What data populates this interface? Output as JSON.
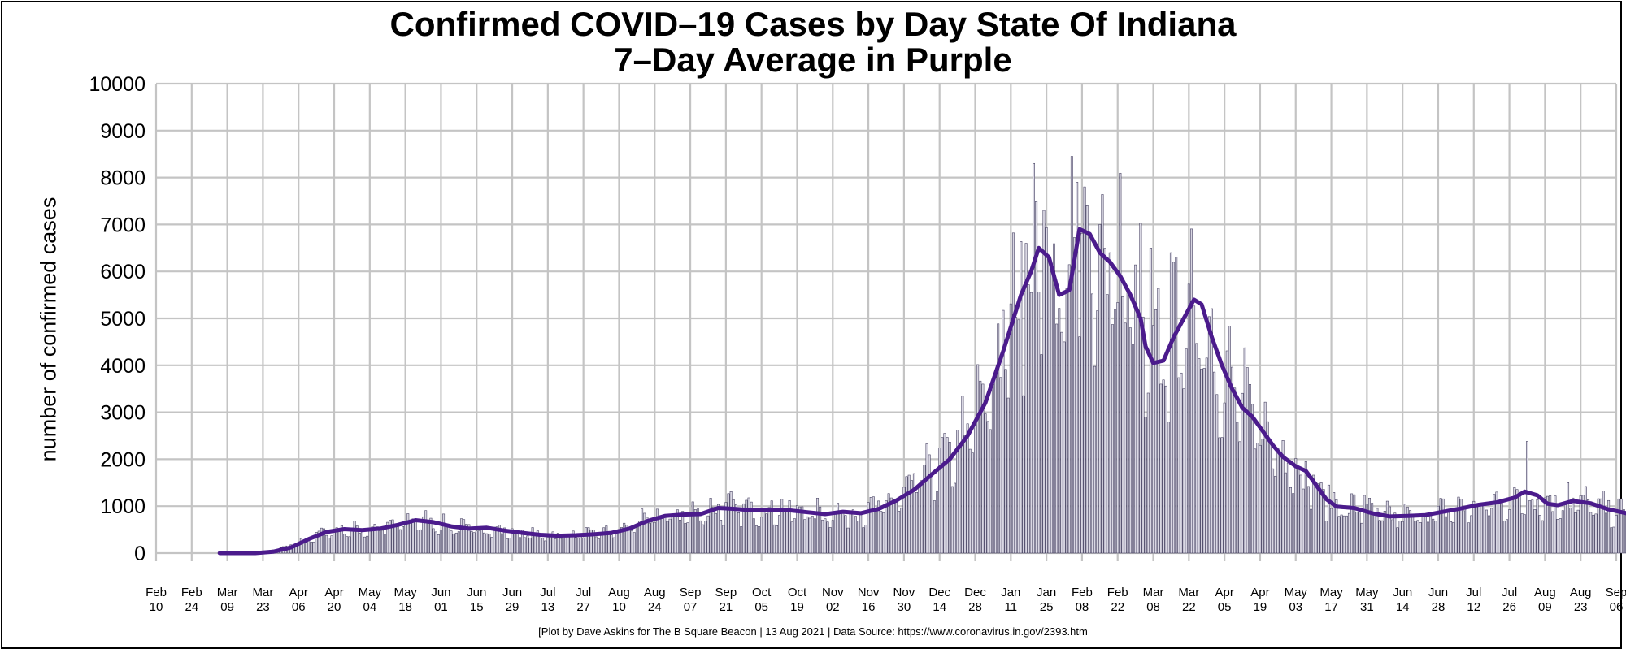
{
  "chart_data": {
    "type": "bar",
    "title": "Confirmed COVID–19 Cases by Day State Of Indiana",
    "subtitle": "7–Day Average in Purple",
    "xlabel": "",
    "ylabel": "number of confirmed cases",
    "ylim": [
      0,
      10000
    ],
    "yticks": [
      "0",
      "1000",
      "2000",
      "3000",
      "4000",
      "5000",
      "6000",
      "7000",
      "8000",
      "9000",
      "10000"
    ],
    "x_start": "2020-02-10",
    "x_end": "2021-09-06",
    "xticks": [
      {
        "month": "Feb",
        "day": "10"
      },
      {
        "month": "Feb",
        "day": "24"
      },
      {
        "month": "Mar",
        "day": "09"
      },
      {
        "month": "Mar",
        "day": "23"
      },
      {
        "month": "Apr",
        "day": "06"
      },
      {
        "month": "Apr",
        "day": "20"
      },
      {
        "month": "May",
        "day": "04"
      },
      {
        "month": "May",
        "day": "18"
      },
      {
        "month": "Jun",
        "day": "01"
      },
      {
        "month": "Jun",
        "day": "15"
      },
      {
        "month": "Jun",
        "day": "29"
      },
      {
        "month": "Jul",
        "day": "13"
      },
      {
        "month": "Jul",
        "day": "27"
      },
      {
        "month": "Aug",
        "day": "10"
      },
      {
        "month": "Aug",
        "day": "24"
      },
      {
        "month": "Sep",
        "day": "07"
      },
      {
        "month": "Sep",
        "day": "21"
      },
      {
        "month": "Oct",
        "day": "05"
      },
      {
        "month": "Oct",
        "day": "19"
      },
      {
        "month": "Nov",
        "day": "02"
      },
      {
        "month": "Nov",
        "day": "16"
      },
      {
        "month": "Nov",
        "day": "30"
      },
      {
        "month": "Dec",
        "day": "14"
      },
      {
        "month": "Dec",
        "day": "28"
      },
      {
        "month": "Jan",
        "day": "11"
      },
      {
        "month": "Jan",
        "day": "25"
      },
      {
        "month": "Feb",
        "day": "08"
      },
      {
        "month": "Feb",
        "day": "22"
      },
      {
        "month": "Mar",
        "day": "08"
      },
      {
        "month": "Mar",
        "day": "22"
      },
      {
        "month": "Apr",
        "day": "05"
      },
      {
        "month": "Apr",
        "day": "19"
      },
      {
        "month": "May",
        "day": "03"
      },
      {
        "month": "May",
        "day": "17"
      },
      {
        "month": "May",
        "day": "31"
      },
      {
        "month": "Jun",
        "day": "14"
      },
      {
        "month": "Jun",
        "day": "28"
      },
      {
        "month": "Jul",
        "day": "12"
      },
      {
        "month": "Jul",
        "day": "26"
      },
      {
        "month": "Aug",
        "day": "09"
      },
      {
        "month": "Aug",
        "day": "23"
      },
      {
        "month": "Sep",
        "day": "06"
      }
    ],
    "series": [
      {
        "name": "Daily confirmed cases",
        "kind": "bar",
        "color": "#9a97ad",
        "start_date": "2020-03-06",
        "anchors": [
          [
            0,
            0
          ],
          [
            14,
            0
          ],
          [
            21,
            60
          ],
          [
            28,
            150
          ],
          [
            35,
            300
          ],
          [
            42,
            470
          ],
          [
            49,
            500
          ],
          [
            56,
            500
          ],
          [
            63,
            540
          ],
          [
            70,
            600
          ],
          [
            77,
            720
          ],
          [
            84,
            640
          ],
          [
            91,
            560
          ],
          [
            98,
            520
          ],
          [
            105,
            530
          ],
          [
            112,
            460
          ],
          [
            119,
            420
          ],
          [
            126,
            390
          ],
          [
            133,
            380
          ],
          [
            140,
            400
          ],
          [
            147,
            410
          ],
          [
            154,
            440
          ],
          [
            161,
            560
          ],
          [
            168,
            720
          ],
          [
            175,
            800
          ],
          [
            182,
            830
          ],
          [
            189,
            870
          ],
          [
            196,
            970
          ],
          [
            203,
            960
          ],
          [
            210,
            920
          ],
          [
            217,
            930
          ],
          [
            224,
            920
          ],
          [
            231,
            880
          ],
          [
            238,
            840
          ],
          [
            245,
            880
          ],
          [
            252,
            870
          ],
          [
            259,
            960
          ],
          [
            266,
            1150
          ],
          [
            273,
            1450
          ],
          [
            280,
            1780
          ],
          [
            287,
            2100
          ],
          [
            294,
            2600
          ],
          [
            301,
            3300
          ],
          [
            308,
            4400
          ],
          [
            315,
            5600
          ],
          [
            322,
            6500
          ],
          [
            329,
            6200
          ],
          [
            336,
            5600
          ],
          [
            343,
            6700
          ],
          [
            350,
            6200
          ],
          [
            357,
            5800
          ],
          [
            364,
            4900
          ],
          [
            368,
            4100
          ],
          [
            375,
            4500
          ],
          [
            382,
            5000
          ],
          [
            386,
            5300
          ],
          [
            392,
            4200
          ],
          [
            399,
            3500
          ],
          [
            406,
            2900
          ],
          [
            413,
            2400
          ],
          [
            420,
            2050
          ],
          [
            427,
            1700
          ],
          [
            434,
            1200
          ],
          [
            441,
            950
          ],
          [
            448,
            950
          ],
          [
            455,
            820
          ],
          [
            462,
            780
          ],
          [
            469,
            800
          ],
          [
            476,
            840
          ],
          [
            483,
            900
          ],
          [
            490,
            960
          ],
          [
            497,
            1020
          ],
          [
            504,
            1060
          ],
          [
            511,
            1180
          ],
          [
            518,
            1150
          ],
          [
            525,
            1060
          ],
          [
            532,
            1120
          ],
          [
            539,
            1040
          ],
          [
            546,
            920
          ],
          [
            553,
            830
          ],
          [
            560,
            760
          ],
          [
            567,
            680
          ],
          [
            574,
            540
          ],
          [
            581,
            440
          ],
          [
            588,
            400
          ],
          [
            595,
            330
          ],
          [
            602,
            260
          ],
          [
            609,
            240
          ],
          [
            616,
            230
          ],
          [
            623,
            240
          ],
          [
            630,
            300
          ],
          [
            637,
            420
          ],
          [
            644,
            540
          ],
          [
            651,
            680
          ],
          [
            658,
            920
          ],
          [
            665,
            1350
          ],
          [
            672,
            1800
          ],
          [
            677,
            2300
          ]
        ],
        "spikes": [
          [
            293,
            2500
          ],
          [
            300,
            3600
          ],
          [
            317,
            6600
          ],
          [
            320,
            8300
          ],
          [
            324,
            7300
          ],
          [
            332,
            4500
          ],
          [
            335,
            8450
          ],
          [
            337,
            7900
          ],
          [
            341,
            7400
          ],
          [
            346,
            7000
          ],
          [
            350,
            6400
          ],
          [
            356,
            4900
          ],
          [
            364,
            2900
          ],
          [
            366,
            6500
          ],
          [
            370,
            3600
          ],
          [
            374,
            6400
          ],
          [
            379,
            3500
          ],
          [
            395,
            3200
          ],
          [
            412,
            2800
          ],
          [
            418,
            2400
          ],
          [
            436,
            1450
          ],
          [
            450,
            1230
          ],
          [
            488,
            1150
          ],
          [
            502,
            1300
          ],
          [
            514,
            2380
          ],
          [
            530,
            1500
          ],
          [
            583,
            1190
          ],
          [
            602,
            580
          ],
          [
            652,
            850
          ],
          [
            672,
            1900
          ],
          [
            679,
            3150
          ]
        ],
        "jitter": 0.22,
        "count": 681
      },
      {
        "name": "7-Day Average",
        "kind": "line",
        "color": "#4b1b8c",
        "start_date": "2020-03-06",
        "points": [
          [
            0,
            0
          ],
          [
            14,
            0
          ],
          [
            21,
            30
          ],
          [
            28,
            120
          ],
          [
            35,
            300
          ],
          [
            42,
            450
          ],
          [
            49,
            510
          ],
          [
            56,
            490
          ],
          [
            63,
            520
          ],
          [
            70,
            600
          ],
          [
            77,
            700
          ],
          [
            84,
            660
          ],
          [
            91,
            570
          ],
          [
            98,
            520
          ],
          [
            105,
            540
          ],
          [
            112,
            480
          ],
          [
            119,
            430
          ],
          [
            126,
            390
          ],
          [
            133,
            370
          ],
          [
            140,
            380
          ],
          [
            147,
            400
          ],
          [
            154,
            430
          ],
          [
            161,
            520
          ],
          [
            168,
            680
          ],
          [
            175,
            790
          ],
          [
            182,
            820
          ],
          [
            189,
            830
          ],
          [
            196,
            960
          ],
          [
            203,
            940
          ],
          [
            210,
            910
          ],
          [
            217,
            920
          ],
          [
            224,
            910
          ],
          [
            231,
            870
          ],
          [
            238,
            830
          ],
          [
            245,
            880
          ],
          [
            252,
            850
          ],
          [
            259,
            940
          ],
          [
            266,
            1120
          ],
          [
            273,
            1350
          ],
          [
            280,
            1680
          ],
          [
            287,
            2000
          ],
          [
            294,
            2500
          ],
          [
            301,
            3200
          ],
          [
            308,
            4300
          ],
          [
            315,
            5500
          ],
          [
            319,
            6000
          ],
          [
            322,
            6500
          ],
          [
            326,
            6300
          ],
          [
            330,
            5500
          ],
          [
            334,
            5600
          ],
          [
            338,
            6900
          ],
          [
            342,
            6800
          ],
          [
            346,
            6400
          ],
          [
            350,
            6200
          ],
          [
            354,
            5900
          ],
          [
            358,
            5500
          ],
          [
            362,
            5000
          ],
          [
            364,
            4400
          ],
          [
            367,
            4050
          ],
          [
            371,
            4100
          ],
          [
            375,
            4600
          ],
          [
            379,
            5000
          ],
          [
            383,
            5400
          ],
          [
            386,
            5300
          ],
          [
            390,
            4600
          ],
          [
            394,
            4000
          ],
          [
            398,
            3500
          ],
          [
            402,
            3100
          ],
          [
            406,
            2900
          ],
          [
            410,
            2600
          ],
          [
            414,
            2300
          ],
          [
            418,
            2050
          ],
          [
            423,
            1850
          ],
          [
            427,
            1750
          ],
          [
            431,
            1450
          ],
          [
            435,
            1150
          ],
          [
            439,
            990
          ],
          [
            446,
            960
          ],
          [
            453,
            850
          ],
          [
            460,
            780
          ],
          [
            467,
            790
          ],
          [
            474,
            810
          ],
          [
            481,
            880
          ],
          [
            488,
            950
          ],
          [
            495,
            1030
          ],
          [
            502,
            1080
          ],
          [
            509,
            1180
          ],
          [
            513,
            1310
          ],
          [
            518,
            1230
          ],
          [
            522,
            1050
          ],
          [
            526,
            1020
          ],
          [
            532,
            1110
          ],
          [
            539,
            1060
          ],
          [
            546,
            930
          ],
          [
            553,
            850
          ],
          [
            560,
            790
          ],
          [
            567,
            680
          ],
          [
            574,
            560
          ],
          [
            581,
            460
          ],
          [
            588,
            410
          ],
          [
            595,
            330
          ],
          [
            602,
            270
          ],
          [
            609,
            250
          ],
          [
            616,
            230
          ],
          [
            623,
            240
          ],
          [
            630,
            280
          ],
          [
            637,
            400
          ],
          [
            644,
            520
          ],
          [
            651,
            640
          ],
          [
            658,
            860
          ],
          [
            665,
            1150
          ],
          [
            670,
            1450
          ],
          [
            677,
            2200
          ]
        ]
      }
    ]
  },
  "caption": "[Plot by Dave Askins for The B Square Beacon | 13 Aug 2021 | Data Source: https://www.coronavirus.in.gov/2393.htm"
}
